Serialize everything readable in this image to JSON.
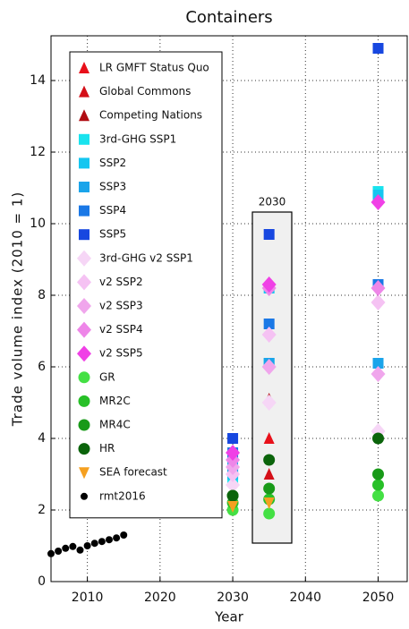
{
  "chart_data": {
    "type": "scatter",
    "title": "Containers",
    "x_label": "Year",
    "y_label": "Trade volume index (2010 = 1)",
    "annotation": "2030",
    "xlim": [
      2005,
      2054
    ],
    "ylim": [
      0,
      15.25
    ],
    "xticks": [
      2010,
      2020,
      2030,
      2040,
      2050
    ],
    "yticks": [
      0,
      2,
      4,
      6,
      8,
      10,
      12,
      14
    ],
    "grid": true,
    "legend": "upper left",
    "series": [
      {
        "name": "LR GMFT Status Quo",
        "color": "#e8101a",
        "marker": "triangle",
        "x": [
          2035
        ],
        "values": [
          4.0
        ]
      },
      {
        "name": "Global Commons",
        "color": "#d40f18",
        "marker": "triangle",
        "x": [
          2035
        ],
        "values": [
          3.0
        ]
      },
      {
        "name": "Competing Nations",
        "color": "#b00c12",
        "marker": "triangle",
        "x": [
          2035
        ],
        "values": [
          5.1
        ]
      },
      {
        "name": "3rd-GHG SSP1",
        "color": "#19e3ee",
        "marker": "square",
        "x": [
          2030,
          2035,
          2050
        ],
        "values": [
          2.8,
          6.1,
          10.9
        ]
      },
      {
        "name": "SSP2",
        "color": "#14c6f0",
        "marker": "square",
        "x": [
          2030,
          2035,
          2050
        ],
        "values": [
          3.0,
          8.2,
          10.8
        ]
      },
      {
        "name": "SSP3",
        "color": "#1aa4ea",
        "marker": "square",
        "x": [
          2030,
          2035,
          2050
        ],
        "values": [
          3.2,
          6.1,
          6.1
        ]
      },
      {
        "name": "SSP4",
        "color": "#1a78e6",
        "marker": "square",
        "x": [
          2030,
          2035,
          2050
        ],
        "values": [
          3.6,
          7.2,
          8.3
        ]
      },
      {
        "name": "SSP5",
        "color": "#1747e0",
        "marker": "square",
        "x": [
          2030,
          2035,
          2050
        ],
        "values": [
          4.0,
          9.7,
          14.9
        ]
      },
      {
        "name": "3rd-GHG v2 SSP1",
        "color": "#f6d6f6",
        "marker": "diamond",
        "x": [
          2030,
          2035,
          2050
        ],
        "values": [
          2.7,
          5.0,
          4.2
        ]
      },
      {
        "name": "v2 SSP2",
        "color": "#f5c2f3",
        "marker": "diamond",
        "x": [
          2030,
          2035,
          2050
        ],
        "values": [
          3.0,
          6.9,
          7.8
        ]
      },
      {
        "name": "v2 SSP3",
        "color": "#f0a6ec",
        "marker": "diamond",
        "x": [
          2030,
          2035,
          2050
        ],
        "values": [
          3.2,
          6.0,
          5.8
        ]
      },
      {
        "name": "v2 SSP4",
        "color": "#ee86e8",
        "marker": "diamond",
        "x": [
          2030,
          2035,
          2050
        ],
        "values": [
          3.4,
          8.2,
          8.2
        ]
      },
      {
        "name": "v2 SSP5",
        "color": "#f040e6",
        "marker": "diamond",
        "x": [
          2030,
          2035,
          2050
        ],
        "values": [
          3.6,
          8.3,
          10.6
        ]
      },
      {
        "name": "GR",
        "color": "#44e044",
        "marker": "circle",
        "x": [
          2030,
          2035,
          2050
        ],
        "values": [
          2.0,
          1.9,
          2.4
        ]
      },
      {
        "name": "MR2C",
        "color": "#28c028",
        "marker": "circle",
        "x": [
          2030,
          2035,
          2050
        ],
        "values": [
          2.2,
          2.3,
          2.7
        ]
      },
      {
        "name": "MR4C",
        "color": "#189a18",
        "marker": "circle",
        "x": [
          2030,
          2035,
          2050
        ],
        "values": [
          2.4,
          2.6,
          3.0
        ]
      },
      {
        "name": "HR",
        "color": "#0b640b",
        "marker": "circle",
        "x": [
          2030,
          2035,
          2050
        ],
        "values": [
          2.4,
          3.4,
          4.0
        ]
      },
      {
        "name": "SEA forecast",
        "color": "#f5a020",
        "marker": "triangle-down",
        "x": [
          2030,
          2035
        ],
        "values": [
          2.1,
          2.2
        ]
      },
      {
        "name": "rmt2016",
        "color": "#000000",
        "marker": "point",
        "x": [
          2005,
          2006,
          2007,
          2008,
          2009,
          2010,
          2011,
          2012,
          2013,
          2014,
          2015
        ],
        "values": [
          0.78,
          0.85,
          0.93,
          0.98,
          0.88,
          1.0,
          1.07,
          1.12,
          1.17,
          1.22,
          1.3
        ]
      }
    ]
  }
}
